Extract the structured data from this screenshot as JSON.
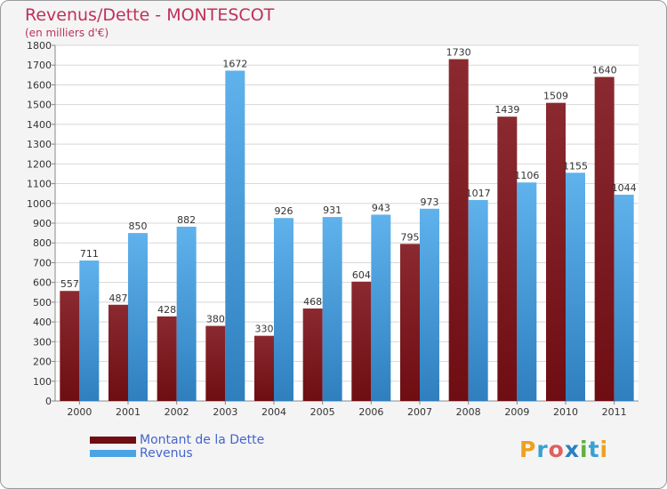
{
  "title": "Revenus/Dette - MONTESCOT",
  "subtitle": "(en milliers d'€)",
  "brand": "Proxiti",
  "colors": {
    "dette": "#6e0d12",
    "revenus": "#4aa3e4",
    "title": "#c0305a"
  },
  "chart_data": {
    "type": "bar",
    "categories": [
      "2000",
      "2001",
      "2002",
      "2003",
      "2004",
      "2005",
      "2006",
      "2007",
      "2008",
      "2009",
      "2010",
      "2011"
    ],
    "series": [
      {
        "name": "Montant de la Dette",
        "values": [
          557,
          487,
          428,
          380,
          330,
          468,
          604,
          795,
          1730,
          1439,
          1509,
          1640
        ]
      },
      {
        "name": "Revenus",
        "values": [
          711,
          850,
          882,
          1672,
          926,
          931,
          943,
          973,
          1017,
          1106,
          1155,
          1044
        ]
      }
    ],
    "ylim": [
      0,
      1800
    ],
    "yticks": [
      0,
      100,
      200,
      300,
      400,
      500,
      600,
      700,
      800,
      900,
      1000,
      1100,
      1200,
      1300,
      1400,
      1500,
      1600,
      1700,
      1800
    ],
    "grid": true,
    "legend": "bottom-left"
  }
}
